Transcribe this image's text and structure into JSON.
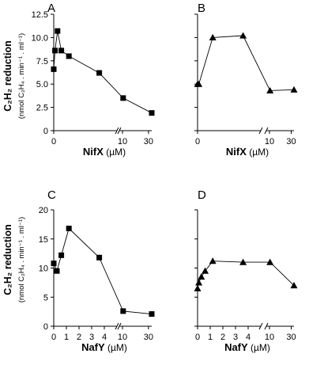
{
  "figure": {
    "ylabel_main": "C₂H₂ reduction",
    "ylabel_sub": "(nmol C₂H₄ . min⁻¹ . ml⁻¹)"
  },
  "chart_data": [
    {
      "panel": "A",
      "type": "line",
      "marker": "square",
      "xlabel": "NifX",
      "xunit": "(µM)",
      "ylabel": "C₂H₂ reduction (nmol C₂H₄ . min⁻¹ . ml⁻¹)",
      "ylim": [
        0,
        12.5
      ],
      "yticks": [
        "0",
        "2.5",
        "5.0",
        "7.5",
        "10.0",
        "12.5"
      ],
      "xticks": [
        "0",
        "10",
        "30"
      ],
      "axis_break": "between 5 and 10 µM",
      "x": [
        0,
        0.1,
        0.3,
        0.6,
        1.2,
        3.6,
        10.5,
        32.5
      ],
      "y": [
        6.6,
        8.6,
        10.7,
        8.6,
        8.0,
        6.2,
        3.5,
        1.9
      ]
    },
    {
      "panel": "B",
      "type": "line",
      "marker": "triangle",
      "xlabel": "NifX",
      "xunit": "(µM)",
      "ylim": [
        0,
        12.5
      ],
      "xticks": [
        "0",
        "10",
        "30"
      ],
      "axis_break": "between 5 and 10 µM",
      "x": [
        0,
        0.1,
        1.2,
        3.6,
        10.5,
        32.5
      ],
      "y": [
        5.0,
        5.0,
        10.0,
        10.2,
        4.3,
        4.4
      ]
    },
    {
      "panel": "C",
      "type": "line",
      "marker": "square",
      "xlabel": "NafY",
      "xunit": "(µM)",
      "ylabel": "C₂H₂ reduction (nmol C₂H₄ . min⁻¹ . ml⁻¹)",
      "ylim": [
        0,
        20
      ],
      "yticks": [
        "0",
        "5",
        "10",
        "15",
        "20"
      ],
      "xticks": [
        "0",
        "1",
        "2",
        "3",
        "4",
        "10",
        "30"
      ],
      "axis_break": "between 5 and 10 µM",
      "x": [
        0,
        0.25,
        0.6,
        1.2,
        3.6,
        10.5,
        32.5
      ],
      "y": [
        10.8,
        9.5,
        12.2,
        16.8,
        11.8,
        2.6,
        2.1
      ]
    },
    {
      "panel": "D",
      "type": "line",
      "marker": "triangle",
      "xlabel": "NafY",
      "xunit": "(µM)",
      "ylim": [
        0,
        20
      ],
      "xticks": [
        "0",
        "1",
        "2",
        "3",
        "4",
        "10",
        "30"
      ],
      "axis_break": "between 5 and 10 µM",
      "x": [
        0,
        0.1,
        0.3,
        0.6,
        1.2,
        3.6,
        10.5,
        32.5
      ],
      "y": [
        6.5,
        7.5,
        8.5,
        9.5,
        11.2,
        11.0,
        11.0,
        7.0
      ]
    }
  ]
}
